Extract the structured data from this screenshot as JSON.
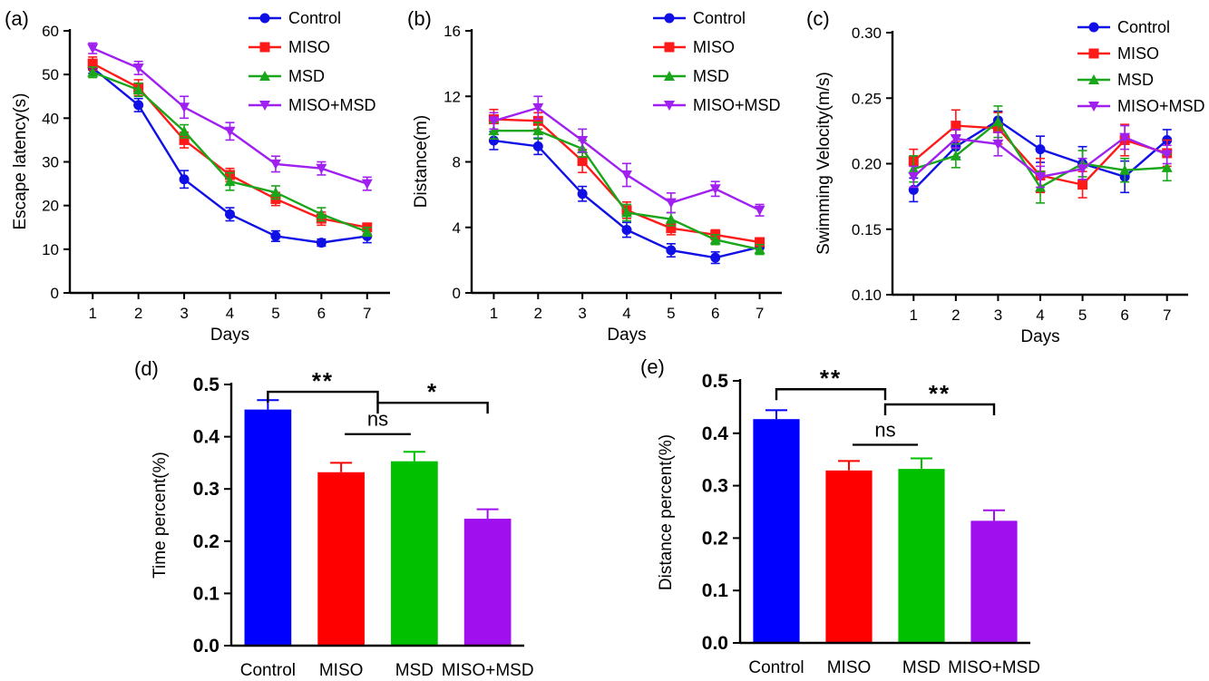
{
  "chart_data": [
    {
      "type": "line",
      "panel_label": "(a)",
      "xlabel": "Days",
      "ylabel": "Escape latency(s)",
      "x": [
        1,
        2,
        3,
        4,
        5,
        6,
        7
      ],
      "xticks": [
        "1",
        "2",
        "3",
        "4",
        "5",
        "6",
        "7"
      ],
      "xlim": [
        0.5,
        7.5
      ],
      "ylim": [
        0,
        60
      ],
      "yticks": [
        0,
        10,
        20,
        30,
        40,
        50,
        60
      ],
      "yticklabels": [
        "0",
        "10",
        "20",
        "30",
        "40",
        "50",
        "60"
      ],
      "legend_position": "top-right",
      "series": [
        {
          "name": "Control",
          "color": "#1010e6",
          "marker": "circle",
          "values": [
            51.5,
            43.0,
            26.0,
            18.0,
            13.0,
            11.5,
            13.0
          ],
          "errors": [
            1.2,
            1.5,
            2.0,
            1.5,
            1.2,
            0.8,
            1.5
          ]
        },
        {
          "name": "MISO",
          "color": "#ff1a1a",
          "marker": "square",
          "values": [
            52.5,
            47.0,
            35.0,
            27.0,
            21.5,
            17.0,
            15.0
          ],
          "errors": [
            1.5,
            1.8,
            1.8,
            1.5,
            1.5,
            1.5,
            0.8
          ]
        },
        {
          "name": "MSD",
          "color": "#1aa61a",
          "marker": "triangle-up",
          "values": [
            50.5,
            46.5,
            37.0,
            25.5,
            23.0,
            18.0,
            14.0
          ],
          "errors": [
            1.2,
            1.5,
            1.5,
            2.0,
            1.5,
            1.5,
            1.0
          ]
        },
        {
          "name": "MISO+MSD",
          "color": "#a020f0",
          "marker": "triangle-down",
          "values": [
            56.0,
            51.5,
            42.5,
            37.0,
            29.5,
            28.5,
            25.0
          ],
          "errors": [
            1.2,
            1.5,
            2.5,
            2.0,
            1.8,
            1.5,
            1.5
          ]
        }
      ]
    },
    {
      "type": "line",
      "panel_label": "(b)",
      "xlabel": "Days",
      "ylabel": "Distance(m)",
      "x": [
        1,
        2,
        3,
        4,
        5,
        6,
        7
      ],
      "xticks": [
        "1",
        "2",
        "3",
        "4",
        "5",
        "6",
        "7"
      ],
      "xlim": [
        0.5,
        7.5
      ],
      "ylim": [
        0,
        16
      ],
      "yticks": [
        0,
        4,
        8,
        12,
        16
      ],
      "yticklabels": [
        "0",
        "4",
        "8",
        "12",
        "16"
      ],
      "legend_position": "top-right",
      "series": [
        {
          "name": "Control",
          "color": "#1010e6",
          "marker": "circle",
          "values": [
            9.3,
            8.95,
            6.05,
            3.85,
            2.6,
            2.15,
            2.8
          ],
          "errors": [
            0.55,
            0.5,
            0.45,
            0.45,
            0.4,
            0.35,
            0.35
          ]
        },
        {
          "name": "MISO",
          "color": "#ff1a1a",
          "marker": "square",
          "values": [
            10.6,
            10.5,
            8.05,
            5.05,
            3.95,
            3.55,
            3.1
          ],
          "errors": [
            0.6,
            0.5,
            0.7,
            0.5,
            0.4,
            0.3,
            0.25
          ]
        },
        {
          "name": "MSD",
          "color": "#1aa61a",
          "marker": "triangle-up",
          "values": [
            9.9,
            9.9,
            8.8,
            4.9,
            4.5,
            3.25,
            2.65
          ],
          "errors": [
            0.5,
            0.5,
            0.5,
            0.5,
            0.4,
            0.3,
            0.3
          ]
        },
        {
          "name": "MISO+MSD",
          "color": "#a020f0",
          "marker": "triangle-down",
          "values": [
            10.5,
            11.3,
            9.3,
            7.2,
            5.5,
            6.35,
            5.05
          ],
          "errors": [
            0.5,
            0.7,
            0.7,
            0.7,
            0.6,
            0.45,
            0.35
          ]
        }
      ]
    },
    {
      "type": "line",
      "panel_label": "(c)",
      "xlabel": "Days",
      "ylabel": "Swimming Velocity(m/s)",
      "x": [
        1,
        2,
        3,
        4,
        5,
        6,
        7
      ],
      "xticks": [
        "1",
        "2",
        "3",
        "4",
        "5",
        "6",
        "7"
      ],
      "xlim": [
        0.5,
        7.5
      ],
      "ylim": [
        0.1,
        0.3
      ],
      "yticks": [
        0.1,
        0.15,
        0.2,
        0.25,
        0.3
      ],
      "yticklabels": [
        "0.10",
        "0.15",
        "0.20",
        "0.25",
        "0.30"
      ],
      "legend_position": "top-right",
      "series": [
        {
          "name": "Control",
          "color": "#1010e6",
          "marker": "circle",
          "values": [
            0.18,
            0.213,
            0.233,
            0.211,
            0.2,
            0.19,
            0.218
          ],
          "errors": [
            0.009,
            0.008,
            0.007,
            0.01,
            0.013,
            0.012,
            0.008
          ]
        },
        {
          "name": "MISO",
          "color": "#ff1a1a",
          "marker": "square",
          "values": [
            0.202,
            0.229,
            0.227,
            0.191,
            0.184,
            0.218,
            0.208
          ],
          "errors": [
            0.009,
            0.012,
            0.012,
            0.013,
            0.01,
            0.012,
            0.01
          ]
        },
        {
          "name": "MSD",
          "color": "#1aa61a",
          "marker": "triangle-up",
          "values": [
            0.196,
            0.206,
            0.232,
            0.182,
            0.2,
            0.195,
            0.197
          ],
          "errors": [
            0.01,
            0.009,
            0.012,
            0.012,
            0.01,
            0.009,
            0.01
          ]
        },
        {
          "name": "MISO+MSD",
          "color": "#a020f0",
          "marker": "triangle-down",
          "values": [
            0.19,
            0.219,
            0.215,
            0.19,
            0.196,
            0.22,
            0.207
          ],
          "errors": [
            0.008,
            0.007,
            0.009,
            0.008,
            0.008,
            0.009,
            0.007
          ]
        }
      ]
    },
    {
      "type": "bar",
      "panel_label": "(d)",
      "ylabel": "Time percent(%)",
      "categories": [
        "Control",
        "MISO",
        "MSD",
        "MISO+MSD"
      ],
      "values": [
        0.452,
        0.332,
        0.353,
        0.243
      ],
      "errors": [
        0.018,
        0.018,
        0.018,
        0.018
      ],
      "colors": [
        "#0000ff",
        "#ff0000",
        "#00c000",
        "#a010ee"
      ],
      "ylim": [
        0,
        0.5
      ],
      "yticks": [
        0,
        0.1,
        0.2,
        0.3,
        0.4,
        0.5
      ],
      "yticklabels": [
        "0.0",
        "0.1",
        "0.2",
        "0.3",
        "0.4",
        "0.5"
      ],
      "annotations": [
        {
          "from": 0,
          "to": 1.5,
          "level": 0.486,
          "text": "**"
        },
        {
          "from": 1,
          "to": 2,
          "level": 0.405,
          "text": "ns"
        },
        {
          "from": 1.5,
          "to": 3,
          "level": 0.465,
          "text": "*"
        }
      ]
    },
    {
      "type": "bar",
      "panel_label": "(e)",
      "ylabel": "Distance percent(%)",
      "categories": [
        "Control",
        "MISO",
        "MSD",
        "MISO+MSD"
      ],
      "values": [
        0.427,
        0.329,
        0.332,
        0.233
      ],
      "errors": [
        0.017,
        0.018,
        0.02,
        0.02
      ],
      "colors": [
        "#0000ff",
        "#ff0000",
        "#00c000",
        "#a010ee"
      ],
      "ylim": [
        0,
        0.5
      ],
      "yticks": [
        0,
        0.1,
        0.2,
        0.3,
        0.4,
        0.5
      ],
      "yticklabels": [
        "0.0",
        "0.1",
        "0.2",
        "0.3",
        "0.4",
        "0.5"
      ],
      "annotations": [
        {
          "from": 0,
          "to": 1.5,
          "level": 0.484,
          "text": "**"
        },
        {
          "from": 1,
          "to": 2,
          "level": 0.378,
          "text": "ns"
        },
        {
          "from": 1.5,
          "to": 3,
          "level": 0.455,
          "text": "**"
        }
      ]
    }
  ]
}
